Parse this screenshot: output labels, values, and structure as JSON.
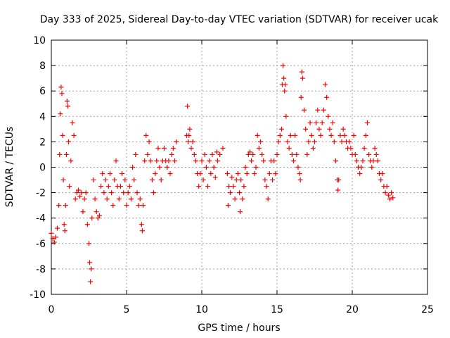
{
  "chart_data": {
    "type": "scatter",
    "title": "Day 333 of 2025, Sidereal Day-to-day VTEC variation (SDTVAR) for receiver ucak",
    "xlabel": "GPS time / hours",
    "ylabel": "SDTVAR / TECUs",
    "xlim": [
      0,
      25
    ],
    "ylim": [
      -10,
      10
    ],
    "xticks": [
      0,
      5,
      10,
      15,
      20,
      25
    ],
    "yticks": [
      -10,
      -8,
      -6,
      -4,
      -2,
      0,
      2,
      4,
      6,
      8,
      10
    ],
    "grid": true,
    "marker": "+",
    "color": "#ff0000",
    "series": [
      {
        "name": "SDTVAR",
        "points": [
          [
            0.0,
            -5.2
          ],
          [
            0.1,
            -5.6
          ],
          [
            0.2,
            -5.9
          ],
          [
            0.3,
            -5.5
          ],
          [
            0.4,
            -4.8
          ],
          [
            0.5,
            -3.0
          ],
          [
            0.55,
            1.0
          ],
          [
            0.6,
            4.2
          ],
          [
            0.65,
            6.3
          ],
          [
            0.7,
            5.8
          ],
          [
            0.75,
            2.5
          ],
          [
            0.8,
            -1.0
          ],
          [
            0.85,
            -4.5
          ],
          [
            0.9,
            -5.0
          ],
          [
            0.95,
            -3.0
          ],
          [
            1.0,
            1.0
          ],
          [
            1.05,
            5.2
          ],
          [
            1.1,
            4.8
          ],
          [
            1.15,
            2.0
          ],
          [
            1.2,
            -1.5
          ],
          [
            1.3,
            0.5
          ],
          [
            1.4,
            3.5
          ],
          [
            1.5,
            2.5
          ],
          [
            1.6,
            -2.5
          ],
          [
            1.7,
            -2.0
          ],
          [
            1.8,
            -1.8
          ],
          [
            1.9,
            -2.3
          ],
          [
            2.0,
            -2.0
          ],
          [
            2.1,
            -3.5
          ],
          [
            2.2,
            -2.5
          ],
          [
            2.3,
            -2.0
          ],
          [
            2.4,
            -4.5
          ],
          [
            2.5,
            -6.0
          ],
          [
            2.55,
            -7.5
          ],
          [
            2.6,
            -9.0
          ],
          [
            2.65,
            -8.0
          ],
          [
            2.7,
            -4.0
          ],
          [
            2.8,
            -1.0
          ],
          [
            2.9,
            -2.5
          ],
          [
            3.0,
            -3.5
          ],
          [
            3.1,
            -4.0
          ],
          [
            3.2,
            -3.8
          ],
          [
            3.3,
            -1.5
          ],
          [
            3.4,
            -0.5
          ],
          [
            3.5,
            -2.0
          ],
          [
            3.6,
            -1.0
          ],
          [
            3.7,
            -2.5
          ],
          [
            3.8,
            -1.5
          ],
          [
            3.9,
            -0.5
          ],
          [
            4.0,
            -2.0
          ],
          [
            4.1,
            -3.0
          ],
          [
            4.2,
            -1.0
          ],
          [
            4.3,
            0.5
          ],
          [
            4.4,
            -1.5
          ],
          [
            4.5,
            -2.5
          ],
          [
            4.6,
            -1.5
          ],
          [
            4.7,
            -0.5
          ],
          [
            4.8,
            -2.0
          ],
          [
            4.9,
            -1.0
          ],
          [
            5.0,
            -3.0
          ],
          [
            5.1,
            -2.0
          ],
          [
            5.2,
            -1.5
          ],
          [
            5.3,
            -2.5
          ],
          [
            5.4,
            0.0
          ],
          [
            5.5,
            -1.0
          ],
          [
            5.6,
            1.0
          ],
          [
            5.7,
            -2.0
          ],
          [
            5.8,
            -3.0
          ],
          [
            5.9,
            -2.5
          ],
          [
            6.0,
            -4.5
          ],
          [
            6.05,
            -5.0
          ],
          [
            6.1,
            -3.0
          ],
          [
            6.2,
            0.5
          ],
          [
            6.3,
            2.5
          ],
          [
            6.4,
            1.0
          ],
          [
            6.5,
            2.0
          ],
          [
            6.6,
            0.5
          ],
          [
            6.7,
            -1.0
          ],
          [
            6.8,
            -2.0
          ],
          [
            6.9,
            -0.5
          ],
          [
            7.0,
            0.5
          ],
          [
            7.1,
            1.5
          ],
          [
            7.2,
            0.0
          ],
          [
            7.3,
            -1.0
          ],
          [
            7.4,
            0.5
          ],
          [
            7.5,
            1.5
          ],
          [
            7.6,
            0.5
          ],
          [
            7.7,
            0.0
          ],
          [
            7.8,
            0.5
          ],
          [
            7.9,
            -0.5
          ],
          [
            8.0,
            1.0
          ],
          [
            8.1,
            1.5
          ],
          [
            8.2,
            0.5
          ],
          [
            8.3,
            2.0
          ],
          [
            9.0,
            2.5
          ],
          [
            9.05,
            4.8
          ],
          [
            9.1,
            2.0
          ],
          [
            9.15,
            2.5
          ],
          [
            9.2,
            3.0
          ],
          [
            9.3,
            1.5
          ],
          [
            9.4,
            2.0
          ],
          [
            9.5,
            1.0
          ],
          [
            9.6,
            0.5
          ],
          [
            9.7,
            -0.5
          ],
          [
            9.8,
            -1.5
          ],
          [
            9.9,
            -0.5
          ],
          [
            10.0,
            0.5
          ],
          [
            10.1,
            -1.0
          ],
          [
            10.2,
            1.0
          ],
          [
            10.3,
            0.0
          ],
          [
            10.4,
            -1.5
          ],
          [
            10.5,
            0.5
          ],
          [
            10.6,
            -0.5
          ],
          [
            10.7,
            1.0
          ],
          [
            10.8,
            0.0
          ],
          [
            10.9,
            -0.8
          ],
          [
            11.0,
            1.2
          ],
          [
            11.05,
            0.5
          ],
          [
            11.2,
            1.0
          ],
          [
            11.4,
            1.5
          ],
          [
            11.7,
            -0.5
          ],
          [
            11.75,
            -3.0
          ],
          [
            11.8,
            -1.5
          ],
          [
            11.9,
            -2.0
          ],
          [
            12.0,
            -0.8
          ],
          [
            12.1,
            -1.5
          ],
          [
            12.2,
            -2.5
          ],
          [
            12.3,
            -1.0
          ],
          [
            12.4,
            -0.5
          ],
          [
            12.5,
            -2.0
          ],
          [
            12.55,
            -3.5
          ],
          [
            12.6,
            -1.0
          ],
          [
            12.7,
            -2.5
          ],
          [
            12.8,
            -1.5
          ],
          [
            12.9,
            0.0
          ],
          [
            13.0,
            -0.5
          ],
          [
            13.1,
            1.0
          ],
          [
            13.2,
            1.2
          ],
          [
            13.3,
            0.5
          ],
          [
            13.4,
            1.0
          ],
          [
            13.5,
            -0.5
          ],
          [
            13.6,
            0.0
          ],
          [
            13.7,
            2.5
          ],
          [
            13.8,
            1.5
          ],
          [
            13.9,
            2.0
          ],
          [
            14.0,
            1.0
          ],
          [
            14.1,
            0.5
          ],
          [
            14.2,
            -1.0
          ],
          [
            14.3,
            -1.5
          ],
          [
            14.4,
            -2.5
          ],
          [
            14.5,
            -0.5
          ],
          [
            14.6,
            0.5
          ],
          [
            14.7,
            -1.0
          ],
          [
            14.8,
            0.5
          ],
          [
            14.9,
            -0.5
          ],
          [
            15.0,
            1.0
          ],
          [
            15.1,
            2.0
          ],
          [
            15.2,
            2.5
          ],
          [
            15.3,
            3.0
          ],
          [
            15.35,
            6.5
          ],
          [
            15.4,
            8.0
          ],
          [
            15.45,
            7.0
          ],
          [
            15.5,
            6.0
          ],
          [
            15.55,
            6.5
          ],
          [
            15.6,
            4.0
          ],
          [
            15.7,
            2.0
          ],
          [
            15.8,
            1.5
          ],
          [
            15.9,
            2.5
          ],
          [
            16.0,
            1.0
          ],
          [
            16.1,
            0.5
          ],
          [
            16.2,
            2.5
          ],
          [
            16.3,
            1.0
          ],
          [
            16.4,
            0.0
          ],
          [
            16.5,
            -0.5
          ],
          [
            16.55,
            -1.0
          ],
          [
            16.6,
            5.5
          ],
          [
            16.65,
            7.5
          ],
          [
            16.7,
            7.0
          ],
          [
            16.8,
            4.5
          ],
          [
            16.9,
            3.0
          ],
          [
            17.0,
            1.0
          ],
          [
            17.1,
            2.0
          ],
          [
            17.2,
            3.5
          ],
          [
            17.3,
            2.5
          ],
          [
            17.4,
            1.5
          ],
          [
            17.5,
            2.0
          ],
          [
            17.6,
            3.5
          ],
          [
            17.7,
            4.5
          ],
          [
            17.8,
            3.0
          ],
          [
            17.9,
            2.5
          ],
          [
            18.0,
            3.5
          ],
          [
            18.1,
            4.5
          ],
          [
            18.2,
            6.5
          ],
          [
            18.3,
            5.5
          ],
          [
            18.4,
            4.0
          ],
          [
            18.5,
            3.0
          ],
          [
            18.6,
            2.5
          ],
          [
            18.7,
            3.5
          ],
          [
            18.8,
            2.0
          ],
          [
            18.9,
            0.5
          ],
          [
            19.0,
            -1.0
          ],
          [
            19.05,
            -1.8
          ],
          [
            19.1,
            -1.0
          ],
          [
            19.2,
            2.5
          ],
          [
            19.3,
            2.0
          ],
          [
            19.4,
            3.0
          ],
          [
            19.5,
            2.5
          ],
          [
            19.6,
            2.0
          ],
          [
            19.7,
            1.5
          ],
          [
            19.8,
            2.0
          ],
          [
            19.9,
            1.5
          ],
          [
            20.0,
            1.0
          ],
          [
            20.1,
            2.5
          ],
          [
            20.2,
            1.0
          ],
          [
            20.3,
            0.5
          ],
          [
            20.4,
            0.0
          ],
          [
            20.5,
            -0.5
          ],
          [
            20.6,
            0.0
          ],
          [
            20.7,
            0.5
          ],
          [
            20.8,
            1.5
          ],
          [
            20.9,
            2.5
          ],
          [
            21.0,
            3.5
          ],
          [
            21.1,
            1.0
          ],
          [
            21.2,
            0.5
          ],
          [
            21.3,
            0.0
          ],
          [
            21.4,
            0.5
          ],
          [
            21.5,
            1.5
          ],
          [
            21.6,
            1.0
          ],
          [
            21.7,
            0.5
          ],
          [
            21.8,
            -0.5
          ],
          [
            21.9,
            -1.0
          ],
          [
            22.0,
            -0.5
          ],
          [
            22.1,
            -1.5
          ],
          [
            22.2,
            -2.0
          ],
          [
            22.3,
            -1.5
          ],
          [
            22.4,
            -2.2
          ],
          [
            22.5,
            -2.5
          ],
          [
            22.6,
            -2.0
          ],
          [
            22.7,
            -2.4
          ]
        ]
      }
    ]
  }
}
